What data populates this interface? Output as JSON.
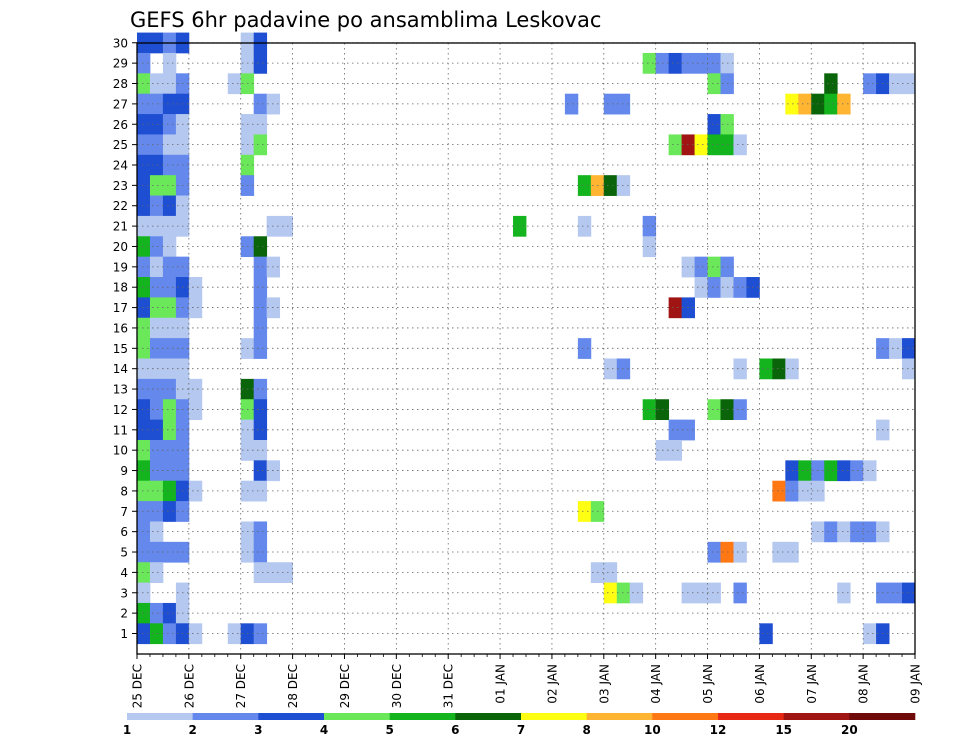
{
  "chart_data": {
    "type": "heatmap",
    "title": "GEFS 6hr padavine po ansamblima Leskovac",
    "x_tick_labels": [
      "25 DEC",
      "26 DEC",
      "27 DEC",
      "28 DEC",
      "29 DEC",
      "30 DEC",
      "31 DEC",
      "01 JAN",
      "02 JAN",
      "03 JAN",
      "04 JAN",
      "05 JAN",
      "06 JAN",
      "07 JAN",
      "08 JAN",
      "09 JAN"
    ],
    "y_tick_labels": [
      "1",
      "2",
      "3",
      "4",
      "5",
      "6",
      "7",
      "8",
      "9",
      "10",
      "11",
      "12",
      "13",
      "14",
      "15",
      "16",
      "17",
      "18",
      "19",
      "20",
      "21",
      "22",
      "23",
      "24",
      "25",
      "26",
      "27",
      "28",
      "29",
      "30"
    ],
    "x_range_steps": [
      0,
      60
    ],
    "members": 30,
    "grid": true,
    "legend_placement": "bottom",
    "color_levels": [
      1,
      2,
      3,
      4,
      5,
      6,
      7,
      8,
      10,
      12,
      15,
      20
    ],
    "colorbar_labels": [
      "1",
      "2",
      "3",
      "4",
      "5",
      "6",
      "7",
      "8",
      "10",
      "12",
      "15",
      "20"
    ],
    "colorbar_colors": [
      "#b4c8f0",
      "#6488ec",
      "#1e4ed2",
      "#6ae85a",
      "#14b41e",
      "#0a640a",
      "#ffff14",
      "#ffb432",
      "#ff7814",
      "#e62814",
      "#a01414",
      "#6e0a0a"
    ],
    "cells": [
      {
        "member": 30,
        "runs": [
          [
            0,
            1,
            3
          ],
          [
            1,
            2,
            3
          ],
          [
            2,
            3,
            2
          ],
          [
            3,
            4,
            3
          ],
          [
            8,
            9,
            1
          ],
          [
            9,
            10,
            3
          ]
        ]
      },
      {
        "member": 29,
        "runs": [
          [
            0,
            1,
            2
          ],
          [
            2,
            3,
            1
          ],
          [
            8,
            9,
            1
          ],
          [
            9,
            10,
            3
          ],
          [
            39,
            40,
            4
          ],
          [
            40,
            41,
            2
          ],
          [
            41,
            42,
            3
          ],
          [
            42,
            45,
            2
          ],
          [
            45,
            46,
            1
          ]
        ]
      },
      {
        "member": 28,
        "runs": [
          [
            0,
            1,
            4
          ],
          [
            1,
            3,
            1
          ],
          [
            3,
            4,
            2
          ],
          [
            7,
            8,
            1
          ],
          [
            8,
            9,
            4
          ],
          [
            44,
            45,
            4
          ],
          [
            45,
            46,
            2
          ],
          [
            53,
            54,
            6
          ],
          [
            56,
            57,
            2
          ],
          [
            57,
            58,
            3
          ],
          [
            58,
            60,
            1
          ]
        ]
      },
      {
        "member": 27,
        "runs": [
          [
            0,
            2,
            2
          ],
          [
            2,
            4,
            3
          ],
          [
            9,
            10,
            2
          ],
          [
            10,
            11,
            1
          ],
          [
            33,
            34,
            2
          ],
          [
            36,
            38,
            2
          ],
          [
            50,
            51,
            7
          ],
          [
            51,
            52,
            8
          ],
          [
            52,
            53,
            6
          ],
          [
            53,
            54,
            5
          ],
          [
            54,
            55,
            8
          ]
        ]
      },
      {
        "member": 26,
        "runs": [
          [
            0,
            2,
            3
          ],
          [
            2,
            3,
            2
          ],
          [
            3,
            4,
            1
          ],
          [
            8,
            10,
            1
          ],
          [
            44,
            45,
            3
          ],
          [
            45,
            46,
            4
          ]
        ]
      },
      {
        "member": 25,
        "runs": [
          [
            0,
            2,
            2
          ],
          [
            2,
            4,
            1
          ],
          [
            8,
            9,
            1
          ],
          [
            9,
            10,
            4
          ],
          [
            41,
            42,
            4
          ],
          [
            42,
            43,
            11
          ],
          [
            43,
            44,
            7
          ],
          [
            44,
            46,
            5
          ],
          [
            46,
            47,
            1
          ]
        ]
      },
      {
        "member": 24,
        "runs": [
          [
            0,
            2,
            3
          ],
          [
            2,
            4,
            2
          ],
          [
            8,
            9,
            4
          ]
        ]
      },
      {
        "member": 23,
        "runs": [
          [
            0,
            1,
            3
          ],
          [
            1,
            3,
            4
          ],
          [
            3,
            4,
            2
          ],
          [
            8,
            9,
            2
          ],
          [
            34,
            35,
            5
          ],
          [
            35,
            36,
            8
          ],
          [
            36,
            37,
            6
          ],
          [
            37,
            38,
            1
          ]
        ]
      },
      {
        "member": 22,
        "runs": [
          [
            0,
            1,
            3
          ],
          [
            1,
            2,
            2
          ],
          [
            2,
            3,
            3
          ],
          [
            3,
            4,
            1
          ]
        ]
      },
      {
        "member": 21,
        "runs": [
          [
            0,
            4,
            1
          ],
          [
            10,
            12,
            1
          ],
          [
            29,
            30,
            5
          ],
          [
            34,
            35,
            1
          ],
          [
            39,
            40,
            2
          ]
        ]
      },
      {
        "member": 20,
        "runs": [
          [
            0,
            1,
            5
          ],
          [
            1,
            2,
            2
          ],
          [
            2,
            3,
            1
          ],
          [
            8,
            9,
            2
          ],
          [
            9,
            10,
            6
          ],
          [
            39,
            40,
            1
          ]
        ]
      },
      {
        "member": 19,
        "runs": [
          [
            0,
            1,
            2
          ],
          [
            1,
            2,
            1
          ],
          [
            2,
            3,
            2
          ],
          [
            3,
            4,
            2
          ],
          [
            9,
            10,
            2
          ],
          [
            10,
            11,
            1
          ],
          [
            42,
            43,
            1
          ],
          [
            43,
            44,
            2
          ],
          [
            44,
            45,
            4
          ],
          [
            45,
            46,
            2
          ]
        ]
      },
      {
        "member": 18,
        "runs": [
          [
            0,
            1,
            5
          ],
          [
            1,
            3,
            2
          ],
          [
            3,
            4,
            3
          ],
          [
            4,
            5,
            1
          ],
          [
            9,
            10,
            2
          ],
          [
            43,
            44,
            1
          ],
          [
            44,
            45,
            2
          ],
          [
            45,
            46,
            1
          ],
          [
            46,
            47,
            2
          ],
          [
            47,
            48,
            3
          ]
        ]
      },
      {
        "member": 17,
        "runs": [
          [
            0,
            1,
            3
          ],
          [
            1,
            3,
            4
          ],
          [
            3,
            4,
            2
          ],
          [
            4,
            5,
            1
          ],
          [
            9,
            10,
            2
          ],
          [
            10,
            11,
            1
          ],
          [
            41,
            42,
            11
          ],
          [
            42,
            43,
            3
          ]
        ]
      },
      {
        "member": 16,
        "runs": [
          [
            0,
            1,
            4
          ],
          [
            1,
            3,
            1
          ],
          [
            3,
            4,
            1
          ],
          [
            9,
            10,
            2
          ]
        ]
      },
      {
        "member": 15,
        "runs": [
          [
            0,
            1,
            4
          ],
          [
            1,
            3,
            2
          ],
          [
            3,
            4,
            2
          ],
          [
            8,
            9,
            1
          ],
          [
            9,
            10,
            2
          ],
          [
            34,
            35,
            2
          ],
          [
            57,
            58,
            2
          ],
          [
            58,
            59,
            1
          ],
          [
            59,
            60,
            3
          ]
        ]
      },
      {
        "member": 14,
        "runs": [
          [
            0,
            4,
            1
          ],
          [
            36,
            37,
            1
          ],
          [
            37,
            38,
            2
          ],
          [
            46,
            47,
            1
          ],
          [
            48,
            49,
            5
          ],
          [
            49,
            50,
            6
          ],
          [
            50,
            51,
            1
          ],
          [
            59,
            60,
            1
          ]
        ]
      },
      {
        "member": 13,
        "runs": [
          [
            0,
            3,
            2
          ],
          [
            3,
            5,
            1
          ],
          [
            8,
            9,
            6
          ],
          [
            9,
            10,
            2
          ]
        ]
      },
      {
        "member": 12,
        "runs": [
          [
            0,
            1,
            3
          ],
          [
            1,
            2,
            2
          ],
          [
            2,
            3,
            4
          ],
          [
            3,
            4,
            2
          ],
          [
            4,
            5,
            1
          ],
          [
            8,
            9,
            4
          ],
          [
            9,
            10,
            3
          ],
          [
            39,
            40,
            5
          ],
          [
            40,
            41,
            6
          ],
          [
            44,
            45,
            4
          ],
          [
            45,
            46,
            6
          ],
          [
            46,
            47,
            2
          ]
        ]
      },
      {
        "member": 11,
        "runs": [
          [
            0,
            2,
            3
          ],
          [
            2,
            3,
            4
          ],
          [
            3,
            4,
            2
          ],
          [
            8,
            9,
            1
          ],
          [
            9,
            10,
            3
          ],
          [
            41,
            43,
            2
          ],
          [
            57,
            58,
            1
          ]
        ]
      },
      {
        "member": 10,
        "runs": [
          [
            0,
            1,
            4
          ],
          [
            1,
            2,
            2
          ],
          [
            2,
            4,
            2
          ],
          [
            8,
            10,
            1
          ],
          [
            40,
            42,
            1
          ]
        ]
      },
      {
        "member": 9,
        "runs": [
          [
            0,
            1,
            5
          ],
          [
            1,
            4,
            2
          ],
          [
            9,
            10,
            3
          ],
          [
            10,
            11,
            1
          ],
          [
            50,
            51,
            3
          ],
          [
            51,
            52,
            5
          ],
          [
            52,
            53,
            2
          ],
          [
            53,
            54,
            5
          ],
          [
            54,
            55,
            3
          ],
          [
            55,
            56,
            2
          ],
          [
            56,
            57,
            1
          ]
        ]
      },
      {
        "member": 8,
        "runs": [
          [
            0,
            2,
            4
          ],
          [
            2,
            3,
            5
          ],
          [
            3,
            4,
            3
          ],
          [
            4,
            5,
            1
          ],
          [
            8,
            10,
            1
          ],
          [
            49,
            50,
            9
          ],
          [
            50,
            51,
            2
          ],
          [
            51,
            53,
            1
          ]
        ]
      },
      {
        "member": 7,
        "runs": [
          [
            0,
            2,
            2
          ],
          [
            2,
            3,
            3
          ],
          [
            3,
            4,
            2
          ],
          [
            34,
            35,
            7
          ],
          [
            35,
            36,
            4
          ]
        ]
      },
      {
        "member": 6,
        "runs": [
          [
            0,
            1,
            2
          ],
          [
            1,
            2,
            1
          ],
          [
            8,
            9,
            1
          ],
          [
            9,
            10,
            2
          ],
          [
            52,
            53,
            1
          ],
          [
            53,
            54,
            2
          ],
          [
            54,
            55,
            1
          ],
          [
            55,
            57,
            2
          ],
          [
            57,
            58,
            1
          ]
        ]
      },
      {
        "member": 5,
        "runs": [
          [
            0,
            4,
            2
          ],
          [
            8,
            9,
            1
          ],
          [
            9,
            10,
            2
          ],
          [
            44,
            45,
            2
          ],
          [
            45,
            46,
            9
          ],
          [
            46,
            47,
            1
          ],
          [
            49,
            51,
            1
          ]
        ]
      },
      {
        "member": 4,
        "runs": [
          [
            0,
            1,
            4
          ],
          [
            1,
            2,
            1
          ],
          [
            9,
            12,
            1
          ],
          [
            35,
            37,
            1
          ]
        ]
      },
      {
        "member": 3,
        "runs": [
          [
            0,
            1,
            1
          ],
          [
            3,
            4,
            1
          ],
          [
            36,
            37,
            7
          ],
          [
            37,
            38,
            4
          ],
          [
            38,
            39,
            1
          ],
          [
            42,
            45,
            1
          ],
          [
            46,
            47,
            2
          ],
          [
            54,
            55,
            1
          ],
          [
            57,
            59,
            2
          ],
          [
            59,
            60,
            3
          ]
        ]
      },
      {
        "member": 2,
        "runs": [
          [
            0,
            1,
            5
          ],
          [
            1,
            2,
            2
          ],
          [
            2,
            3,
            3
          ],
          [
            3,
            4,
            1
          ]
        ]
      },
      {
        "member": 1,
        "runs": [
          [
            0,
            1,
            3
          ],
          [
            1,
            2,
            5
          ],
          [
            2,
            3,
            2
          ],
          [
            3,
            4,
            3
          ],
          [
            4,
            5,
            1
          ],
          [
            7,
            8,
            1
          ],
          [
            8,
            9,
            3
          ],
          [
            9,
            10,
            2
          ],
          [
            48,
            49,
            3
          ],
          [
            56,
            57,
            1
          ],
          [
            57,
            58,
            3
          ]
        ]
      }
    ]
  }
}
